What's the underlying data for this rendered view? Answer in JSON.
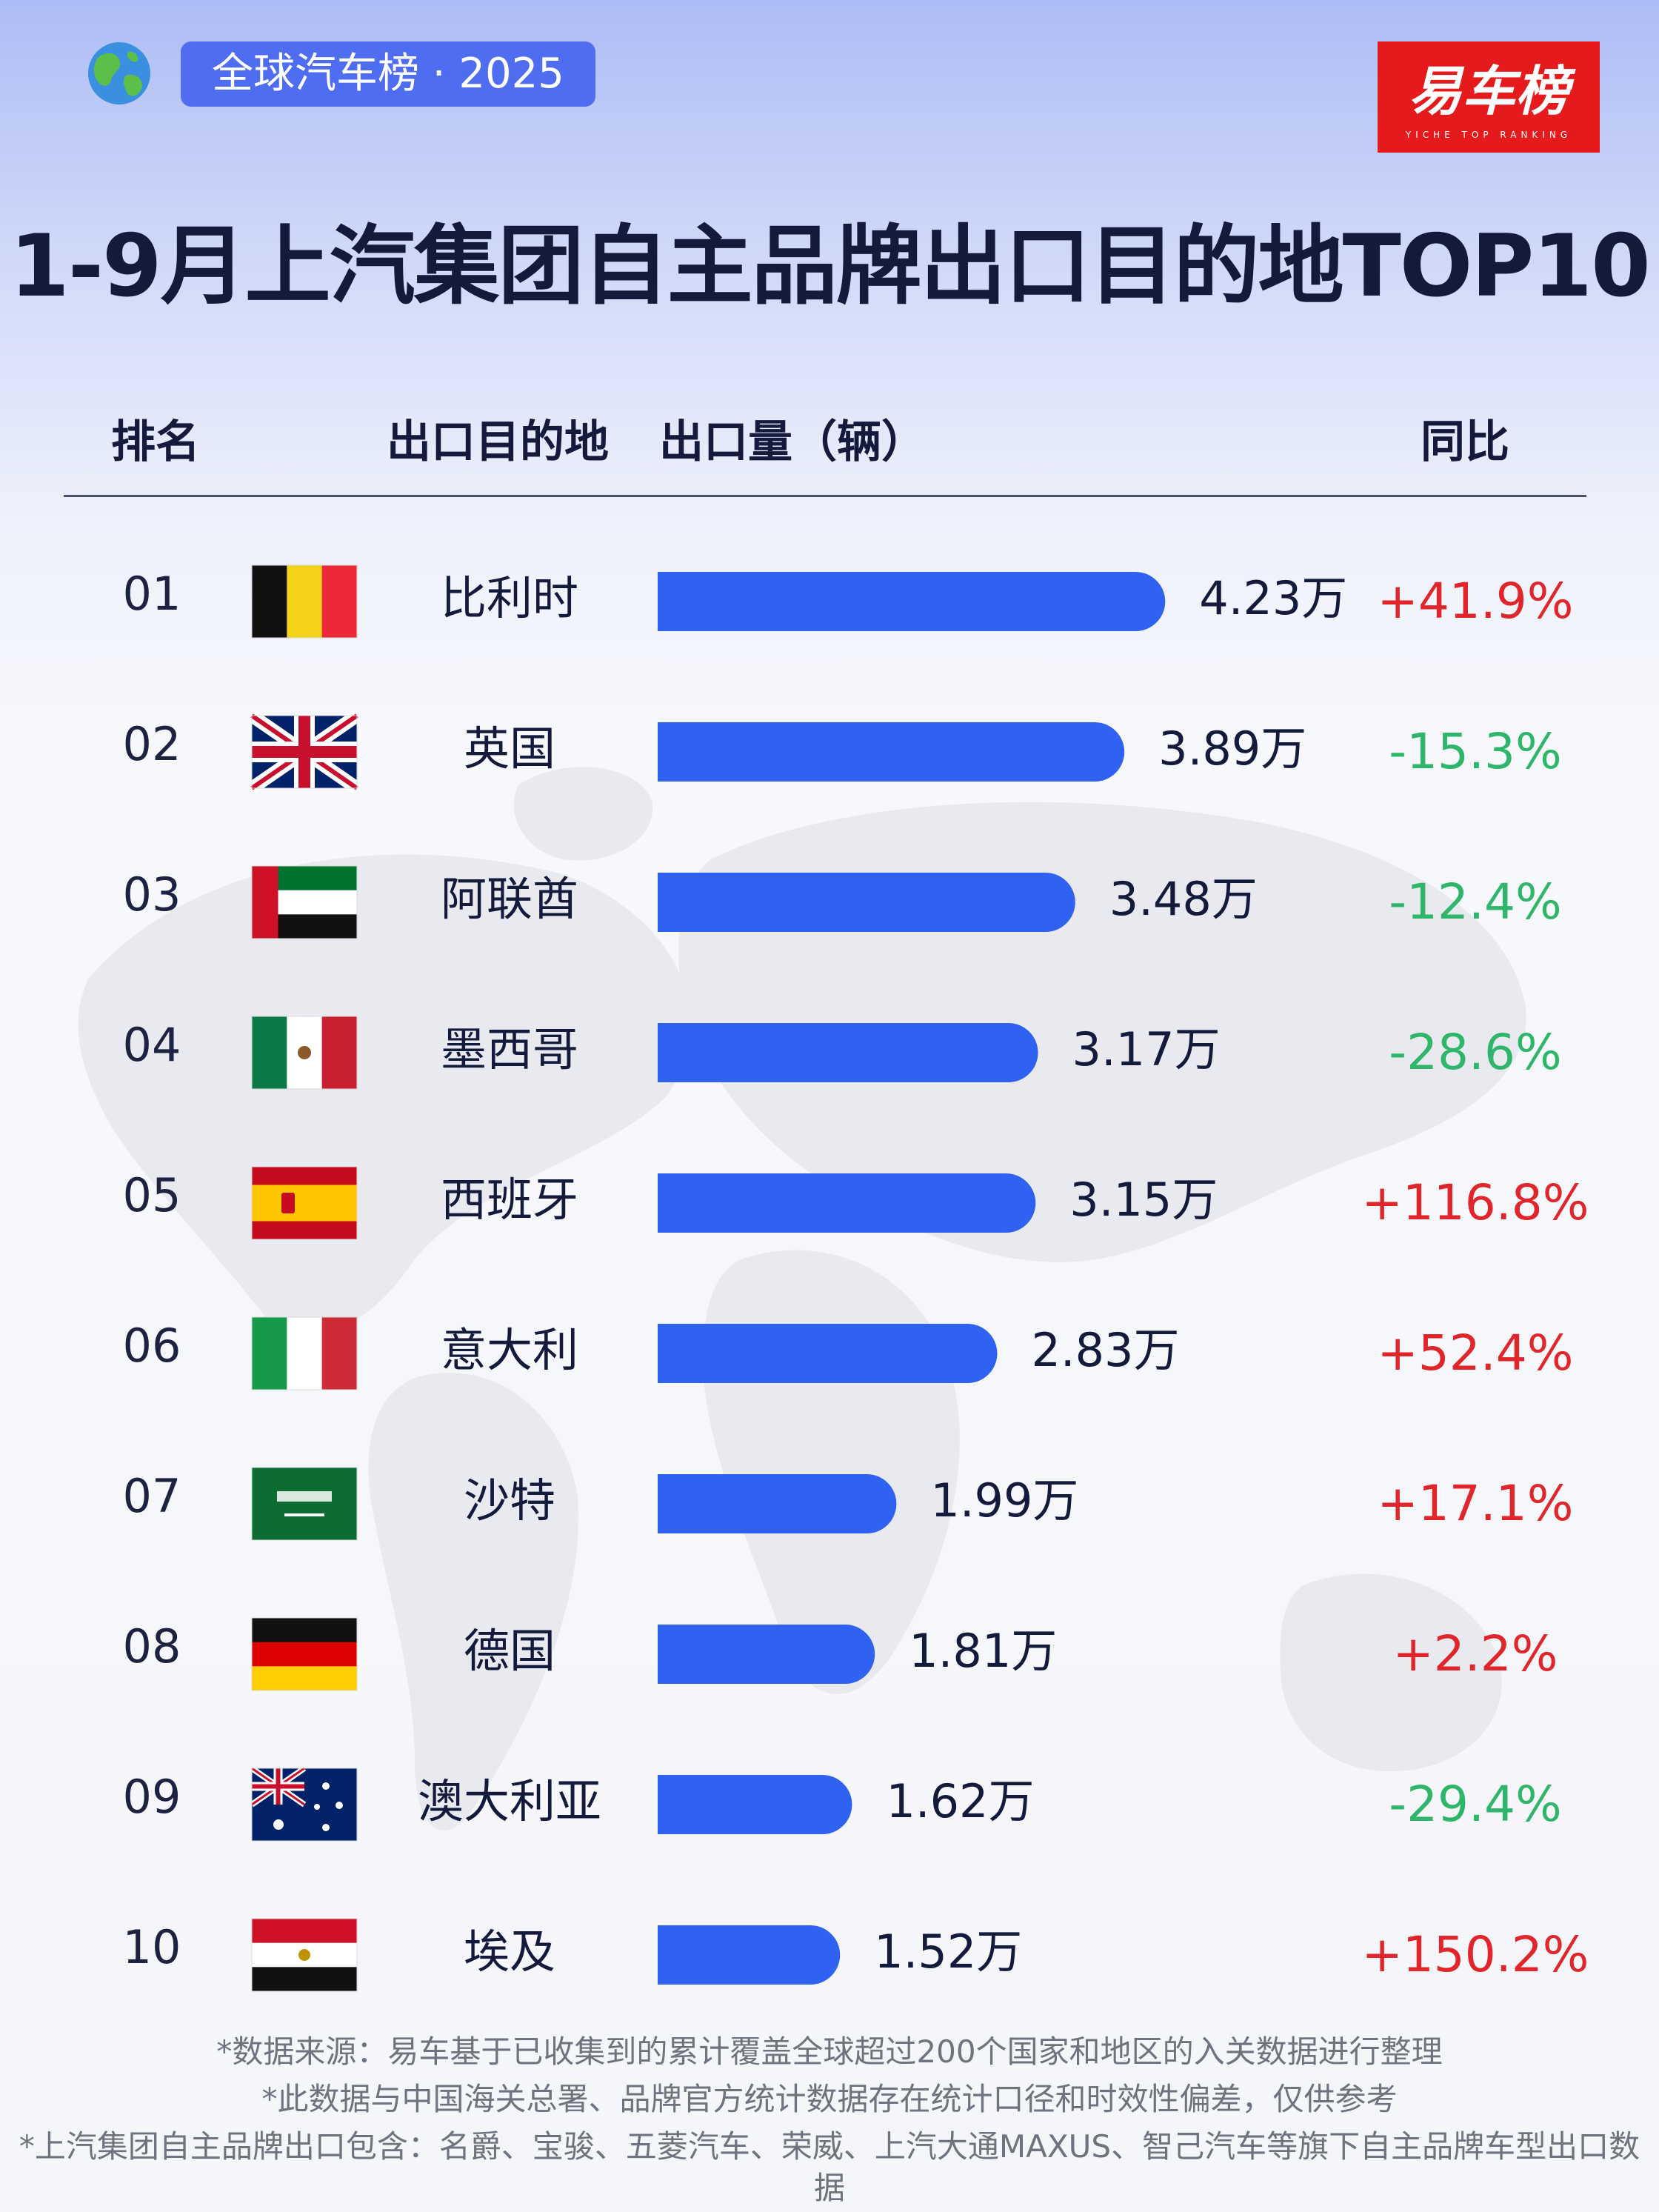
{
  "header": {
    "tag": "全球汽车榜 · 2025",
    "brand_logo_text": "易车榜",
    "brand_logo_sub": "YICHE TOP RANKING",
    "title": "1-9月上汽集团自主品牌出口目的地TOP10"
  },
  "table_headers": {
    "rank": "排名",
    "destination": "出口目的地",
    "volume": "出口量（辆）",
    "yoy": "同比"
  },
  "colors": {
    "bar": "#2f62f0",
    "positive": "#e0262b",
    "negative": "#2fb66a",
    "tag_bg": "#4f6df0",
    "logo_red": "#e41a1c"
  },
  "chart_data": {
    "type": "bar",
    "orientation": "horizontal",
    "title": "1-9月上汽集团自主品牌出口目的地TOP10",
    "unit": "万",
    "ranks": [
      "01",
      "02",
      "03",
      "04",
      "05",
      "06",
      "07",
      "08",
      "09",
      "10"
    ],
    "categories": [
      "比利时",
      "英国",
      "阿联酋",
      "墨西哥",
      "西班牙",
      "意大利",
      "沙特",
      "德国",
      "澳大利亚",
      "埃及"
    ],
    "flags": [
      "belgium-flag",
      "uk-flag",
      "uae-flag",
      "mexico-flag",
      "spain-flag",
      "italy-flag",
      "saudi-flag",
      "germany-flag",
      "australia-flag",
      "egypt-flag"
    ],
    "values": [
      4.23,
      3.89,
      3.48,
      3.17,
      3.15,
      2.83,
      1.99,
      1.81,
      1.62,
      1.52
    ],
    "value_labels": [
      "4.23万",
      "3.89万",
      "3.48万",
      "3.17万",
      "3.15万",
      "2.83万",
      "1.99万",
      "1.81万",
      "1.62万",
      "1.52万"
    ],
    "yoy": [
      "+41.9%",
      "-15.3%",
      "-12.4%",
      "-28.6%",
      "+116.8%",
      "+52.4%",
      "+17.1%",
      "+2.2%",
      "-29.4%",
      "+150.2%"
    ],
    "grid": false,
    "legend": "none"
  },
  "footnotes": [
    "*数据来源：易车基于已收集到的累计覆盖全球超过200个国家和地区的入关数据进行整理",
    "*此数据与中国海关总署、品牌官方统计数据存在统计口径和时效性偏差，仅供参考",
    "*上汽集团自主品牌出口包含：名爵、宝骏、五菱汽车、荣威、上汽大通MAXUS、智己汽车等旗下自主品牌车型出口数",
    "据"
  ]
}
